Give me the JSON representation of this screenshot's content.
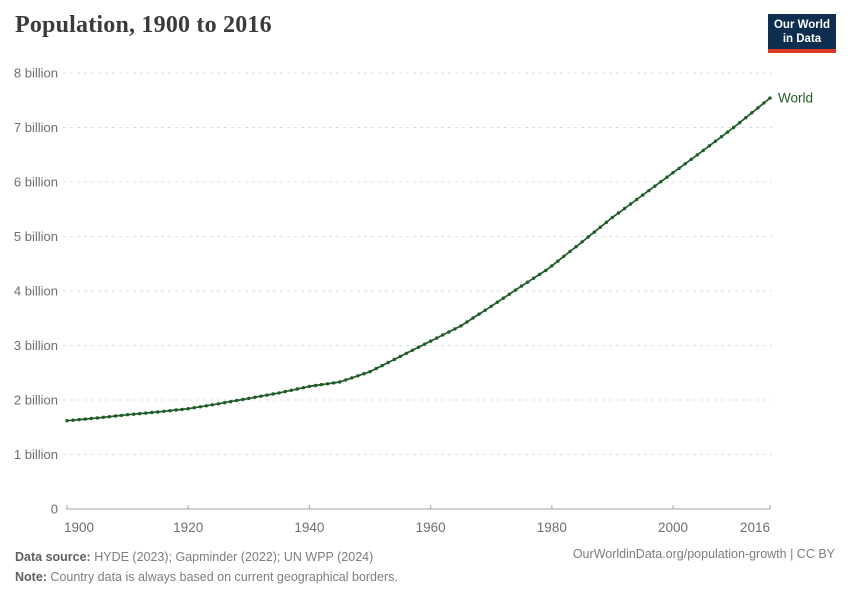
{
  "header": {
    "title": "Population, 1900 to 2016",
    "logo": {
      "line1": "Our World",
      "line2": "in Data",
      "bg_color": "#0d2e4e",
      "accent_color": "#d73c22"
    }
  },
  "chart_data": {
    "type": "line",
    "title": "Population, 1900 to 2016",
    "x_years": {
      "start": 1900,
      "end": 2016,
      "step": 1
    },
    "series": [
      {
        "name": "World",
        "color": "#1d5c27",
        "unit": "billion",
        "values": [
          1.62,
          1.63,
          1.64,
          1.65,
          1.66,
          1.67,
          1.682,
          1.694,
          1.706,
          1.718,
          1.73,
          1.74,
          1.75,
          1.76,
          1.77,
          1.78,
          1.792,
          1.804,
          1.816,
          1.828,
          1.84,
          1.858,
          1.876,
          1.894,
          1.912,
          1.93,
          1.95,
          1.97,
          1.99,
          2.01,
          2.03,
          2.05,
          2.07,
          2.09,
          2.11,
          2.13,
          2.154,
          2.178,
          2.202,
          2.226,
          2.25,
          2.266,
          2.282,
          2.298,
          2.314,
          2.33,
          2.368,
          2.406,
          2.444,
          2.482,
          2.52,
          2.576,
          2.632,
          2.688,
          2.744,
          2.8,
          2.856,
          2.912,
          2.968,
          3.024,
          3.08,
          3.136,
          3.192,
          3.248,
          3.304,
          3.36,
          3.432,
          3.504,
          3.576,
          3.648,
          3.72,
          3.794,
          3.868,
          3.942,
          4.016,
          4.09,
          4.162,
          4.234,
          4.306,
          4.378,
          4.46,
          4.548,
          4.636,
          4.724,
          4.812,
          4.9,
          4.99,
          5.08,
          5.17,
          5.26,
          5.35,
          5.432,
          5.514,
          5.596,
          5.678,
          5.76,
          5.842,
          5.924,
          6.006,
          6.088,
          6.17,
          6.252,
          6.334,
          6.416,
          6.498,
          6.58,
          6.664,
          6.748,
          6.832,
          6.916,
          7.0,
          7.09,
          7.18,
          7.27,
          7.36,
          7.45,
          7.54
        ]
      }
    ],
    "xlabel": "",
    "ylabel": "",
    "ylim_billions": [
      0,
      8
    ],
    "yticks": [
      {
        "value": 0,
        "label": "0"
      },
      {
        "value": 1,
        "label": "1 billion"
      },
      {
        "value": 2,
        "label": "2 billion"
      },
      {
        "value": 3,
        "label": "3 billion"
      },
      {
        "value": 4,
        "label": "4 billion"
      },
      {
        "value": 5,
        "label": "5 billion"
      },
      {
        "value": 6,
        "label": "6 billion"
      },
      {
        "value": 7,
        "label": "7 billion"
      },
      {
        "value": 8,
        "label": "8 billion"
      }
    ],
    "xticks": [
      1900,
      1920,
      1940,
      1960,
      1980,
      2000,
      2016
    ],
    "grid": "dashed-horizontal",
    "legend_position": "end-of-line-label",
    "marker": "dot-every-year"
  },
  "footer": {
    "source_label": "Data source:",
    "source_text": " HYDE (2023); Gapminder (2022); UN WPP (2024)",
    "note_label": "Note:",
    "note_text": " Country data is always based on current geographical borders.",
    "link_text": "OurWorldinData.org/population-growth | CC BY"
  },
  "colors": {
    "title": "#3b3b3b",
    "axis_text": "#6e6e6e",
    "gridline": "#dcdcdc",
    "axis_line": "#a3a3a3",
    "footer_text": "#7d7d7d",
    "series_world": "#1d5c27"
  }
}
